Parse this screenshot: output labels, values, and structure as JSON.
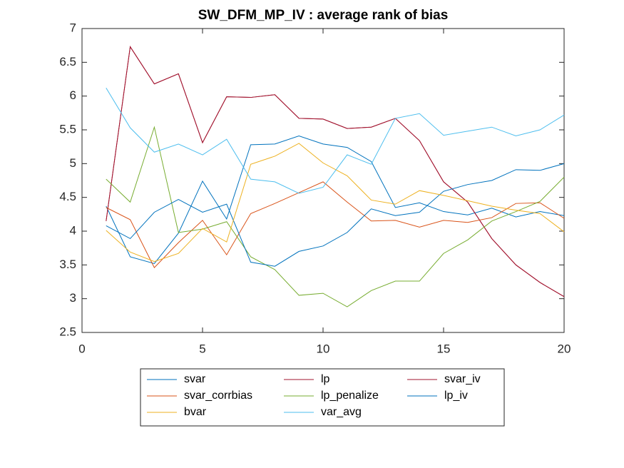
{
  "chart_data": {
    "type": "line",
    "title": "SW_DFM_MP_IV : average rank of bias",
    "x": [
      1,
      2,
      3,
      4,
      5,
      6,
      7,
      8,
      9,
      10,
      11,
      12,
      13,
      14,
      15,
      16,
      17,
      18,
      19,
      20
    ],
    "series": [
      {
        "name": "svar",
        "color": "#0072BD",
        "values": [
          4.37,
          3.62,
          3.52,
          3.97,
          4.74,
          4.18,
          5.28,
          5.29,
          5.41,
          5.29,
          5.24,
          5.03,
          4.35,
          4.42,
          4.29,
          4.24,
          4.34,
          4.21,
          4.29,
          4.23
        ]
      },
      {
        "name": "lp",
        "color": "#A2142F",
        "values": [
          4.15,
          6.73,
          6.18,
          6.33,
          5.31,
          5.99,
          5.98,
          6.02,
          5.67,
          5.66,
          5.52,
          5.54,
          5.67,
          5.34,
          4.73,
          4.43,
          3.89,
          3.5,
          3.24,
          3.03
        ]
      },
      {
        "name": "svar_iv",
        "color": "#A2142F",
        "values": [
          4.15,
          6.73,
          6.18,
          6.33,
          5.31,
          5.99,
          5.98,
          6.02,
          5.67,
          5.66,
          5.52,
          5.54,
          5.67,
          5.34,
          4.73,
          4.43,
          3.89,
          3.5,
          3.24,
          3.03
        ]
      },
      {
        "name": "svar_corrbias",
        "color": "#D95319",
        "values": [
          4.35,
          4.17,
          3.46,
          3.83,
          4.16,
          3.65,
          4.26,
          4.41,
          4.57,
          4.73,
          4.43,
          4.15,
          4.16,
          4.06,
          4.16,
          4.13,
          4.2,
          4.41,
          4.42,
          4.19
        ]
      },
      {
        "name": "lp_penalize",
        "color": "#77AC30",
        "values": [
          4.77,
          4.43,
          5.54,
          3.98,
          4.03,
          4.14,
          3.62,
          3.43,
          3.05,
          3.08,
          2.88,
          3.12,
          3.26,
          3.26,
          3.67,
          3.87,
          4.15,
          4.29,
          4.44,
          4.8
        ]
      },
      {
        "name": "lp_iv",
        "color": "#0072BD",
        "values": [
          4.08,
          3.89,
          4.28,
          4.47,
          4.28,
          4.4,
          3.54,
          3.48,
          3.7,
          3.78,
          3.98,
          4.33,
          4.23,
          4.28,
          4.59,
          4.69,
          4.75,
          4.91,
          4.9,
          5.0
        ]
      },
      {
        "name": "bvar",
        "color": "#EDB120",
        "values": [
          4.01,
          3.69,
          3.55,
          3.67,
          4.04,
          3.84,
          4.99,
          5.11,
          5.3,
          5.01,
          4.82,
          4.46,
          4.4,
          4.6,
          4.53,
          4.45,
          4.37,
          4.31,
          4.26,
          3.99
        ]
      },
      {
        "name": "var_avg",
        "color": "#4DBEEE",
        "values": [
          6.12,
          5.53,
          5.17,
          5.29,
          5.13,
          5.36,
          4.77,
          4.73,
          4.56,
          4.65,
          5.13,
          4.99,
          5.67,
          5.74,
          5.42,
          5.48,
          5.54,
          5.41,
          5.5,
          5.72
        ]
      }
    ],
    "xlim": [
      0,
      20
    ],
    "xticks": [
      0,
      5,
      10,
      15,
      20
    ],
    "ylim": [
      2.5,
      7
    ],
    "yticks": [
      2.5,
      3,
      3.5,
      4,
      4.5,
      5,
      5.5,
      6,
      6.5,
      7
    ],
    "legend": "bottom"
  }
}
